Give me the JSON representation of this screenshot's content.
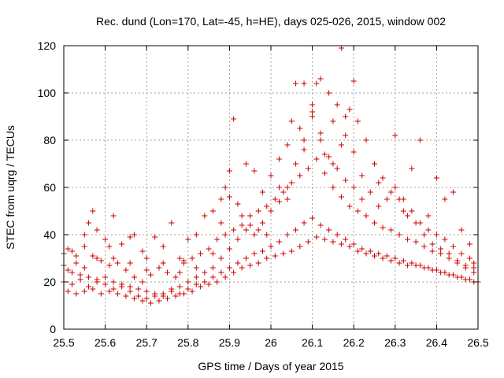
{
  "chart_data": {
    "type": "scatter",
    "title": "Rec. dund (Lon=170, Lat=-45, h=HE), days 025-026, 2015, window 002",
    "xlabel": "GPS time / Days of year 2015",
    "ylabel": "STEC from uqrg / TECUs",
    "xlim": [
      25.5,
      26.5
    ],
    "ylim": [
      0,
      120
    ],
    "xticks": [
      "25.5",
      "25.6",
      "25.7",
      "25.8",
      "25.9",
      "26",
      "26.1",
      "26.2",
      "26.3",
      "26.4",
      "26.5"
    ],
    "yticks": [
      "0",
      "20",
      "40",
      "60",
      "80",
      "100",
      "120"
    ],
    "grid": true,
    "marker": "plus",
    "color": "#cc0000",
    "series": [
      {
        "points": [
          [
            25.5,
            32
          ],
          [
            25.51,
            34
          ],
          [
            25.52,
            33
          ],
          [
            25.53,
            31
          ],
          [
            25.55,
            40
          ],
          [
            25.56,
            45
          ],
          [
            25.57,
            50
          ],
          [
            25.58,
            42
          ],
          [
            25.6,
            38
          ],
          [
            25.61,
            35
          ],
          [
            25.62,
            48
          ],
          [
            25.64,
            36
          ],
          [
            25.66,
            39
          ],
          [
            25.67,
            40
          ],
          [
            25.69,
            33
          ],
          [
            25.7,
            30
          ],
          [
            25.72,
            39
          ],
          [
            25.74,
            35
          ],
          [
            25.76,
            45
          ],
          [
            25.78,
            30
          ],
          [
            25.79,
            29
          ],
          [
            25.8,
            38
          ],
          [
            25.82,
            40
          ],
          [
            25.84,
            48
          ],
          [
            25.86,
            50
          ],
          [
            25.88,
            55
          ],
          [
            25.89,
            60
          ],
          [
            25.9,
            56
          ],
          [
            25.92,
            53
          ],
          [
            25.94,
            70
          ],
          [
            25.96,
            67
          ],
          [
            25.98,
            58
          ],
          [
            26.0,
            65
          ],
          [
            26.02,
            72
          ],
          [
            26.04,
            78
          ],
          [
            26.05,
            88
          ],
          [
            26.07,
            85
          ],
          [
            26.08,
            76
          ],
          [
            26.1,
            92
          ],
          [
            26.12,
            83
          ],
          [
            26.13,
            74
          ],
          [
            26.15,
            70
          ],
          [
            26.17,
            78
          ],
          [
            26.18,
            82
          ],
          [
            26.2,
            75
          ],
          [
            26.22,
            65
          ],
          [
            26.24,
            58
          ],
          [
            26.26,
            62
          ],
          [
            26.28,
            55
          ],
          [
            26.3,
            60
          ],
          [
            26.32,
            55
          ],
          [
            26.34,
            50
          ],
          [
            26.36,
            45
          ],
          [
            26.38,
            42
          ],
          [
            26.4,
            40
          ],
          [
            26.42,
            38
          ],
          [
            26.44,
            35
          ],
          [
            26.46,
            32
          ],
          [
            26.48,
            30
          ],
          [
            26.49,
            28
          ]
        ]
      },
      {
        "points": [
          [
            25.5,
            27
          ],
          [
            25.51,
            25
          ],
          [
            25.53,
            28
          ],
          [
            25.55,
            26
          ],
          [
            25.57,
            31
          ],
          [
            25.59,
            29
          ],
          [
            25.61,
            27
          ],
          [
            25.63,
            28
          ],
          [
            25.65,
            25
          ],
          [
            25.67,
            22
          ],
          [
            25.69,
            20
          ],
          [
            25.71,
            23
          ],
          [
            25.73,
            26
          ],
          [
            25.75,
            24
          ],
          [
            25.77,
            22
          ],
          [
            25.79,
            28
          ],
          [
            25.81,
            30
          ],
          [
            25.83,
            32
          ],
          [
            25.85,
            34
          ],
          [
            25.87,
            38
          ],
          [
            25.89,
            40
          ],
          [
            25.91,
            42
          ],
          [
            25.93,
            44
          ],
          [
            25.95,
            48
          ],
          [
            25.97,
            50
          ],
          [
            25.99,
            52
          ],
          [
            26.01,
            55
          ],
          [
            26.03,
            58
          ],
          [
            26.05,
            62
          ],
          [
            26.07,
            65
          ],
          [
            26.09,
            68
          ],
          [
            26.11,
            72
          ],
          [
            26.13,
            66
          ],
          [
            26.15,
            60
          ],
          [
            26.17,
            56
          ],
          [
            26.19,
            52
          ],
          [
            26.21,
            50
          ],
          [
            26.23,
            48
          ],
          [
            26.25,
            45
          ],
          [
            26.27,
            43
          ],
          [
            26.29,
            42
          ],
          [
            26.31,
            40
          ],
          [
            26.33,
            38
          ],
          [
            26.35,
            37
          ],
          [
            26.37,
            35
          ],
          [
            26.39,
            33
          ],
          [
            26.41,
            32
          ],
          [
            26.43,
            30
          ],
          [
            26.45,
            28
          ],
          [
            26.47,
            27
          ],
          [
            26.49,
            26
          ]
        ]
      },
      {
        "points": [
          [
            25.5,
            20
          ],
          [
            25.52,
            19
          ],
          [
            25.54,
            21
          ],
          [
            25.56,
            18
          ],
          [
            25.58,
            20
          ],
          [
            25.6,
            19
          ],
          [
            25.62,
            17
          ],
          [
            25.64,
            18
          ],
          [
            25.66,
            16
          ],
          [
            25.68,
            14
          ],
          [
            25.7,
            13
          ],
          [
            25.72,
            14
          ],
          [
            25.74,
            15
          ],
          [
            25.76,
            16
          ],
          [
            25.78,
            15
          ],
          [
            25.8,
            17
          ],
          [
            25.82,
            19
          ],
          [
            25.84,
            20
          ],
          [
            25.86,
            22
          ],
          [
            25.88,
            24
          ],
          [
            25.9,
            26
          ],
          [
            25.92,
            28
          ],
          [
            25.94,
            30
          ],
          [
            25.96,
            32
          ],
          [
            25.98,
            33
          ],
          [
            26.0,
            35
          ],
          [
            26.02,
            37
          ],
          [
            26.04,
            40
          ],
          [
            26.06,
            42
          ],
          [
            26.08,
            45
          ],
          [
            26.1,
            47
          ],
          [
            26.12,
            44
          ],
          [
            26.14,
            42
          ],
          [
            26.16,
            40
          ],
          [
            26.18,
            38
          ],
          [
            26.2,
            36
          ],
          [
            26.22,
            34
          ],
          [
            26.24,
            33
          ],
          [
            26.26,
            32
          ],
          [
            26.28,
            31
          ],
          [
            26.3,
            30
          ],
          [
            26.32,
            29
          ],
          [
            26.34,
            28
          ],
          [
            26.36,
            27
          ],
          [
            26.38,
            26
          ],
          [
            26.4,
            25
          ],
          [
            26.42,
            24
          ],
          [
            26.44,
            23
          ],
          [
            26.46,
            22
          ],
          [
            26.48,
            21
          ],
          [
            26.5,
            20
          ]
        ]
      },
      {
        "points": [
          [
            25.52,
            24
          ],
          [
            25.54,
            23
          ],
          [
            25.56,
            22
          ],
          [
            25.58,
            21
          ],
          [
            25.6,
            22
          ],
          [
            25.62,
            20
          ],
          [
            25.64,
            19
          ],
          [
            25.66,
            18
          ],
          [
            25.68,
            17
          ],
          [
            25.7,
            16
          ],
          [
            25.72,
            15
          ],
          [
            25.74,
            14
          ],
          [
            25.76,
            17
          ],
          [
            25.78,
            18
          ],
          [
            25.8,
            20
          ],
          [
            25.82,
            22
          ],
          [
            25.84,
            24
          ],
          [
            25.86,
            26
          ],
          [
            25.88,
            30
          ],
          [
            25.9,
            34
          ],
          [
            25.92,
            38
          ],
          [
            25.94,
            42
          ],
          [
            25.96,
            40
          ],
          [
            25.98,
            45
          ],
          [
            26.0,
            50
          ],
          [
            26.02,
            54
          ],
          [
            26.04,
            60
          ],
          [
            26.06,
            70
          ],
          [
            26.08,
            80
          ],
          [
            26.1,
            95
          ],
          [
            26.11,
            104
          ],
          [
            26.12,
            106
          ],
          [
            26.14,
            100
          ],
          [
            26.15,
            88
          ],
          [
            26.16,
            95
          ],
          [
            26.17,
            119
          ],
          [
            26.18,
            90
          ],
          [
            26.19,
            93
          ],
          [
            26.2,
            105
          ],
          [
            26.21,
            88
          ],
          [
            26.23,
            80
          ],
          [
            26.25,
            70
          ],
          [
            26.27,
            64
          ],
          [
            26.29,
            58
          ],
          [
            26.31,
            55
          ],
          [
            26.33,
            48
          ],
          [
            26.35,
            45
          ],
          [
            26.37,
            40
          ],
          [
            26.39,
            36
          ],
          [
            26.41,
            34
          ],
          [
            26.43,
            32
          ],
          [
            26.45,
            29
          ],
          [
            26.47,
            26
          ],
          [
            26.49,
            24
          ]
        ]
      },
      {
        "points": [
          [
            25.51,
            16
          ],
          [
            25.53,
            15
          ],
          [
            25.55,
            16
          ],
          [
            25.57,
            17
          ],
          [
            25.59,
            15
          ],
          [
            25.61,
            16
          ],
          [
            25.63,
            15
          ],
          [
            25.65,
            14
          ],
          [
            25.67,
            13
          ],
          [
            25.69,
            12
          ],
          [
            25.71,
            11
          ],
          [
            25.73,
            12
          ],
          [
            25.75,
            13
          ],
          [
            25.77,
            14
          ],
          [
            25.79,
            15
          ],
          [
            25.81,
            16
          ],
          [
            25.83,
            18
          ],
          [
            25.85,
            19
          ],
          [
            25.87,
            20
          ],
          [
            25.89,
            22
          ],
          [
            25.91,
            24
          ],
          [
            25.93,
            26
          ],
          [
            25.95,
            27
          ],
          [
            25.97,
            28
          ],
          [
            25.99,
            30
          ],
          [
            26.01,
            31
          ],
          [
            26.03,
            32
          ],
          [
            26.05,
            33
          ],
          [
            26.07,
            35
          ],
          [
            26.09,
            37
          ],
          [
            26.11,
            39
          ],
          [
            26.13,
            38
          ],
          [
            26.15,
            37
          ],
          [
            26.17,
            36
          ],
          [
            26.19,
            35
          ],
          [
            26.21,
            33
          ],
          [
            26.23,
            32
          ],
          [
            26.25,
            31
          ],
          [
            26.27,
            30
          ],
          [
            26.29,
            29
          ],
          [
            26.31,
            28
          ],
          [
            26.33,
            27
          ],
          [
            26.35,
            27
          ],
          [
            26.37,
            26
          ],
          [
            26.39,
            25
          ],
          [
            26.41,
            24
          ],
          [
            26.43,
            23
          ],
          [
            26.45,
            22
          ],
          [
            26.47,
            21
          ],
          [
            26.49,
            20
          ]
        ]
      },
      {
        "points": [
          [
            25.55,
            35
          ],
          [
            25.58,
            30
          ],
          [
            25.62,
            30
          ],
          [
            25.66,
            28
          ],
          [
            25.7,
            25
          ],
          [
            25.74,
            28
          ],
          [
            25.78,
            24
          ],
          [
            25.82,
            26
          ],
          [
            25.86,
            32
          ],
          [
            25.88,
            45
          ],
          [
            25.9,
            67
          ],
          [
            25.91,
            89
          ],
          [
            25.93,
            48
          ],
          [
            25.95,
            44
          ],
          [
            25.97,
            42
          ],
          [
            25.99,
            40
          ],
          [
            26.02,
            60
          ],
          [
            26.04,
            55
          ],
          [
            26.06,
            104
          ],
          [
            26.08,
            104
          ],
          [
            26.1,
            90
          ],
          [
            26.12,
            80
          ],
          [
            26.14,
            73
          ],
          [
            26.16,
            68
          ],
          [
            26.18,
            63
          ],
          [
            26.2,
            60
          ],
          [
            26.22,
            55
          ],
          [
            26.26,
            52
          ],
          [
            26.3,
            82
          ],
          [
            26.32,
            50
          ],
          [
            26.34,
            68
          ],
          [
            26.36,
            80
          ],
          [
            26.38,
            48
          ],
          [
            26.4,
            64
          ],
          [
            26.42,
            55
          ],
          [
            26.44,
            58
          ],
          [
            26.46,
            42
          ],
          [
            26.48,
            36
          ]
        ]
      }
    ]
  }
}
